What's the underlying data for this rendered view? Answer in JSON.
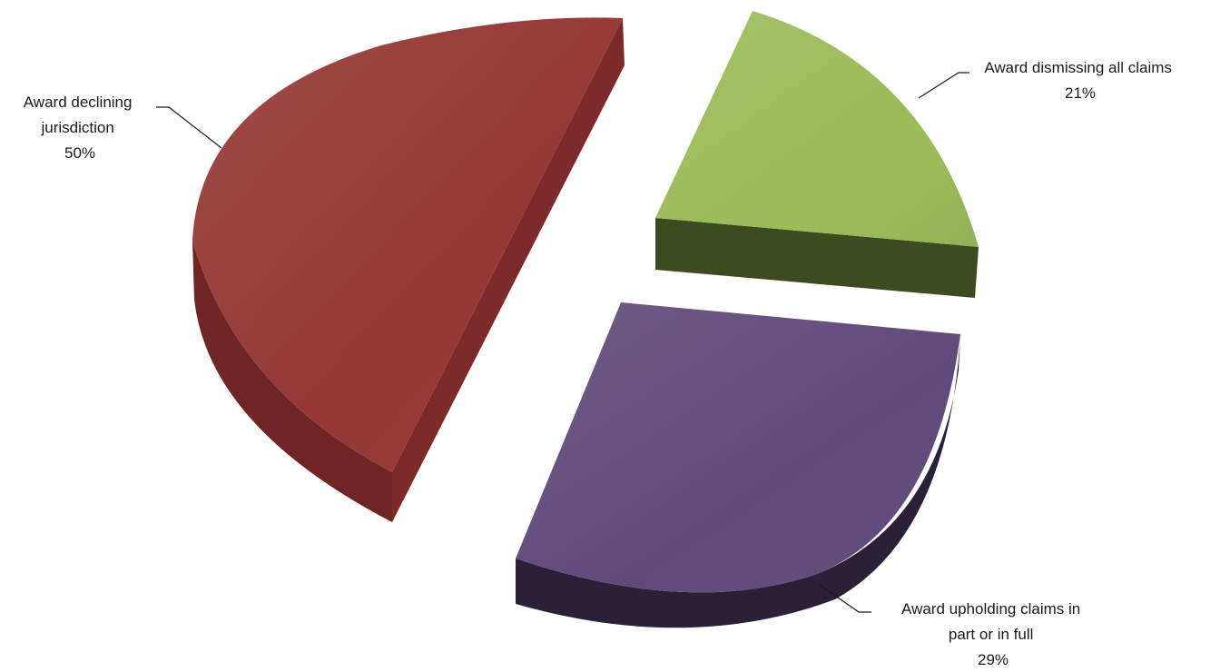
{
  "chart_data": {
    "type": "pie",
    "style": "3d-exploded",
    "slices": [
      {
        "label": "Award dismissing all claims",
        "label_lines": [
          "Award dismissing all claims"
        ],
        "value": 21,
        "value_label": "21%",
        "color": "#9bbb59",
        "side_color": "#3c4b20"
      },
      {
        "label": "Award upholding claims in part or in full",
        "label_lines": [
          "Award upholding claims in",
          "part or in full"
        ],
        "value": 29,
        "value_label": "29%",
        "color": "#604a7b",
        "side_color": "#2a2038"
      },
      {
        "label": "Award declining jurisdiction",
        "label_lines": [
          "Award declining",
          "jurisdiction"
        ],
        "value": 50,
        "value_label": "50%",
        "color": "#953735",
        "side_color": "#5e1d1c"
      }
    ],
    "legend": "none",
    "data_labels": "category name and percentage with leader lines"
  }
}
